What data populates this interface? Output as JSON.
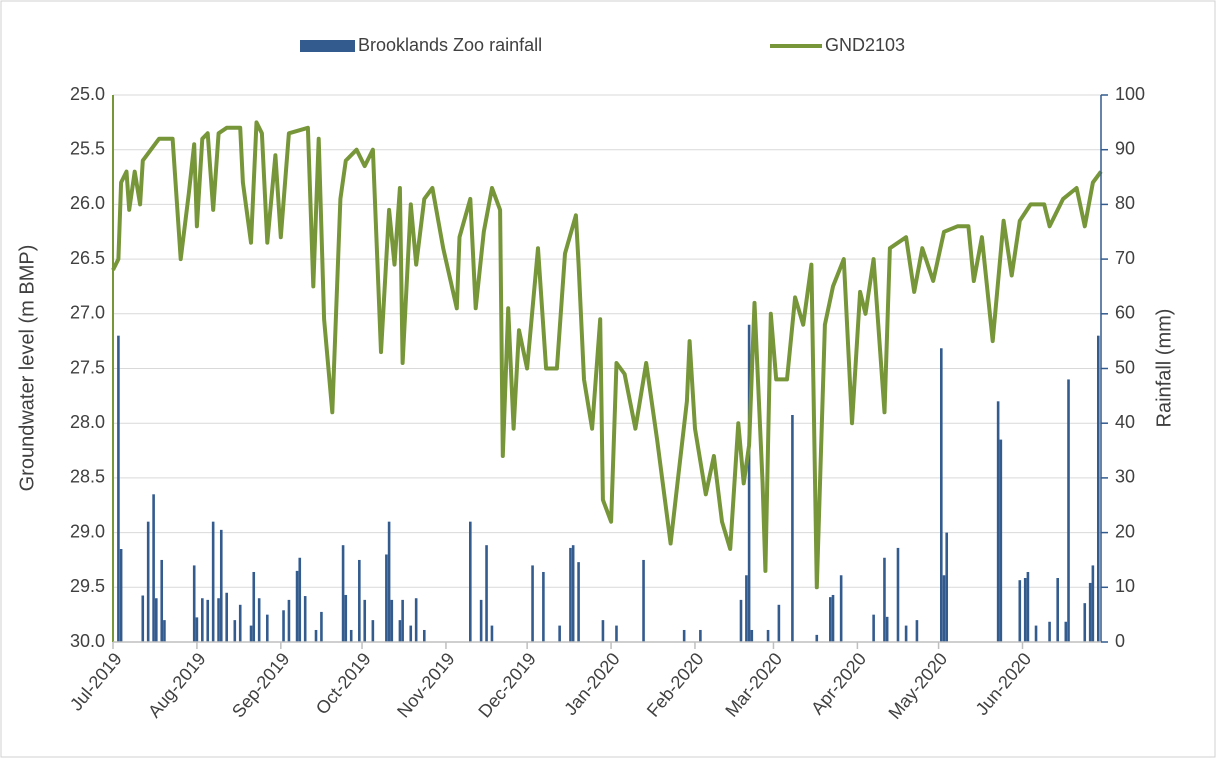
{
  "chart_data": {
    "type": "line",
    "y_label": "Groundwater level (m BMP)",
    "y2_label": "Rainfall (mm)",
    "xlim": [
      0,
      365
    ],
    "xticks": [
      {
        "value": 0,
        "label": "Jul-2019"
      },
      {
        "value": 31,
        "label": "Aug-2019"
      },
      {
        "value": 62,
        "label": "Sep-2019"
      },
      {
        "value": 92,
        "label": "Oct-2019"
      },
      {
        "value": 123,
        "label": "Nov-2019"
      },
      {
        "value": 153,
        "label": "Dec-2019"
      },
      {
        "value": 184,
        "label": "Jan-2020"
      },
      {
        "value": 215,
        "label": "Feb-2020"
      },
      {
        "value": 244,
        "label": "Mar-2020"
      },
      {
        "value": 275,
        "label": "Apr-2020"
      },
      {
        "value": 305,
        "label": "May-2020"
      },
      {
        "value": 336,
        "label": "Jun-2020"
      }
    ],
    "ylim": [
      30,
      25
    ],
    "yticks": [
      {
        "value": 25,
        "label": "25.0"
      },
      {
        "value": 25.5,
        "label": "25.5"
      },
      {
        "value": 26,
        "label": "26.0"
      },
      {
        "value": 26.5,
        "label": "26.5"
      },
      {
        "value": 27,
        "label": "27.0"
      },
      {
        "value": 27.5,
        "label": "27.5"
      },
      {
        "value": 28,
        "label": "28.0"
      },
      {
        "value": 28.5,
        "label": "28.5"
      },
      {
        "value": 29,
        "label": "29.0"
      },
      {
        "value": 29.5,
        "label": "29.5"
      },
      {
        "value": 30,
        "label": "30.0"
      }
    ],
    "y2lim": [
      0,
      100
    ],
    "y2ticks": [
      0,
      10,
      20,
      30,
      40,
      50,
      60,
      70,
      80,
      90,
      100
    ],
    "grid": true,
    "legend": "top",
    "series": [
      {
        "name": "Brooklands Zoo rainfall",
        "type": "bar",
        "axis": "y2",
        "color": "#335b8e",
        "x": [
          2,
          3,
          11,
          13,
          15,
          16,
          18,
          19,
          30,
          31,
          33,
          35,
          37,
          39,
          40,
          42,
          45,
          47,
          51,
          52,
          54,
          57,
          63,
          65,
          68,
          69,
          71,
          75,
          77,
          85,
          86,
          88,
          91,
          93,
          96,
          101,
          102,
          103,
          106,
          107,
          110,
          112,
          115,
          132,
          136,
          138,
          140,
          155,
          159,
          165,
          169,
          170,
          172,
          181,
          186,
          196,
          211,
          217,
          232,
          234,
          235,
          236,
          242,
          246,
          251,
          260,
          265,
          266,
          269,
          281,
          285,
          286,
          290,
          293,
          297,
          306,
          307,
          308,
          327,
          328,
          335,
          337,
          338,
          341,
          346,
          349,
          352,
          353,
          359,
          361,
          362,
          364
        ],
        "values": [
          56,
          17,
          8.5,
          22,
          27,
          8,
          15,
          4,
          14,
          4.5,
          8,
          7.7,
          22,
          8,
          20.5,
          9,
          4,
          6.8,
          3,
          12.8,
          8,
          5,
          5.8,
          7.7,
          13,
          15.4,
          8.4,
          2.2,
          5.5,
          17.7,
          8.6,
          2.2,
          15,
          7.7,
          4,
          16,
          22,
          7.7,
          4,
          7.7,
          3,
          8,
          2.2,
          22,
          7.7,
          17.7,
          3,
          14,
          12.8,
          3,
          17.2,
          17.7,
          14.6,
          4,
          3,
          15,
          2.2,
          2.2,
          7.7,
          12.2,
          58,
          2.2,
          2.2,
          6.8,
          41.5,
          1.3,
          8.2,
          8.6,
          12.2,
          5,
          15.4,
          4.6,
          17.2,
          3,
          4,
          53.7,
          12.2,
          20,
          44,
          37,
          11.3,
          11.7,
          12.8,
          3,
          3.7,
          11.7,
          3.7,
          48,
          7.1,
          10.8,
          14,
          56
        ]
      },
      {
        "name": "GND2103",
        "type": "line",
        "color": "#77963a",
        "x": [
          0,
          2,
          3,
          5,
          6,
          8,
          10,
          11,
          14,
          17,
          22,
          25,
          28,
          30,
          31,
          33,
          35,
          37,
          39,
          42,
          47,
          48,
          51,
          53,
          55,
          57,
          60,
          62,
          65,
          72,
          74,
          76,
          78,
          81,
          84,
          86,
          90,
          93,
          96,
          99,
          102,
          104,
          106,
          107,
          110,
          112,
          115,
          118,
          122,
          127,
          128,
          132,
          134,
          137,
          140,
          143,
          144,
          146,
          148,
          150,
          153,
          157,
          160,
          164,
          167,
          171,
          172,
          174,
          177,
          180,
          181,
          184,
          186,
          189,
          193,
          197,
          201,
          206,
          209,
          212,
          213,
          215,
          219,
          222,
          225,
          228,
          231,
          233,
          235,
          237,
          240,
          241,
          243,
          245,
          249,
          252,
          255,
          258,
          260,
          263,
          266,
          270,
          273,
          276,
          278,
          281,
          285,
          287,
          293,
          296,
          299,
          303,
          307,
          312,
          316,
          318,
          321,
          325,
          329,
          332,
          335,
          339,
          344,
          346,
          351,
          356,
          359,
          362,
          365
        ],
        "values": [
          26.6,
          26.5,
          25.8,
          25.7,
          26.05,
          25.7,
          26.0,
          25.6,
          25.5,
          25.4,
          25.4,
          26.5,
          25.9,
          25.45,
          26.2,
          25.4,
          25.35,
          26.05,
          25.35,
          25.3,
          25.3,
          25.8,
          26.35,
          25.25,
          25.35,
          26.35,
          25.55,
          26.3,
          25.35,
          25.3,
          26.75,
          25.4,
          27.05,
          27.9,
          25.95,
          25.6,
          25.5,
          25.65,
          25.5,
          27.35,
          26.05,
          26.55,
          25.85,
          27.45,
          26.0,
          26.55,
          25.95,
          25.85,
          26.4,
          26.95,
          26.3,
          25.95,
          26.95,
          26.25,
          25.85,
          26.05,
          28.3,
          26.95,
          28.05,
          27.15,
          27.5,
          26.4,
          27.5,
          27.5,
          26.45,
          26.1,
          26.55,
          27.6,
          28.05,
          27.05,
          28.7,
          28.9,
          27.45,
          27.55,
          28.05,
          27.45,
          28.15,
          29.1,
          28.45,
          27.8,
          27.25,
          28.05,
          28.65,
          28.3,
          28.9,
          29.15,
          28.0,
          28.55,
          28.2,
          26.9,
          28.55,
          29.35,
          27.0,
          27.6,
          27.6,
          26.85,
          27.1,
          26.55,
          29.5,
          27.1,
          26.75,
          26.5,
          28.0,
          26.8,
          27.0,
          26.5,
          27.9,
          26.4,
          26.3,
          26.8,
          26.4,
          26.7,
          26.25,
          26.2,
          26.2,
          26.7,
          26.3,
          27.25,
          26.15,
          26.65,
          26.15,
          26.0,
          26.0,
          26.2,
          25.95,
          25.85,
          26.2,
          25.8,
          25.7
        ]
      }
    ]
  }
}
